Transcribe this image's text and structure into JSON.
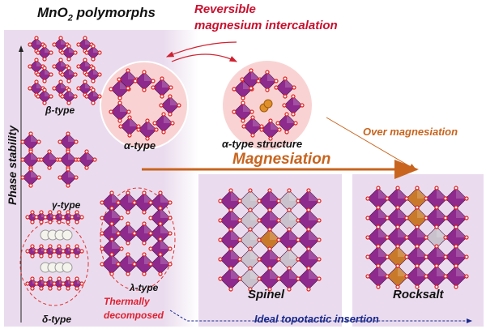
{
  "title": {
    "main": "MnO",
    "sub": "2",
    "rest": " polymorphs"
  },
  "axis_label": "Phase stability",
  "labels": {
    "beta": "β-type",
    "gamma": "γ-type",
    "delta": "δ-type",
    "alpha": "α-type",
    "lambda": "λ-type",
    "alpha_structure": "α-type structure",
    "spinel": "Spinel",
    "rocksalt": "Rocksalt"
  },
  "annotations": {
    "reversible_line1": "Reversible",
    "reversible_line2": "magnesium intercalation",
    "over_magnesiation": "Over magnesiation",
    "magnesiation": "Magnesiation",
    "thermally_line1": "Thermally",
    "thermally_line2": "decomposed",
    "ideal_topotactic": "Ideal topotactic insertion"
  },
  "colors": {
    "panel": "#eadcee",
    "octahedron": "#8e2a8e",
    "oxygen": "#e02020",
    "circle_fill": "#f9d3d3",
    "red_text": "#c8102e",
    "orange": "#c8641e",
    "navy": "#1a2a8c",
    "mg": "#e0902a"
  }
}
